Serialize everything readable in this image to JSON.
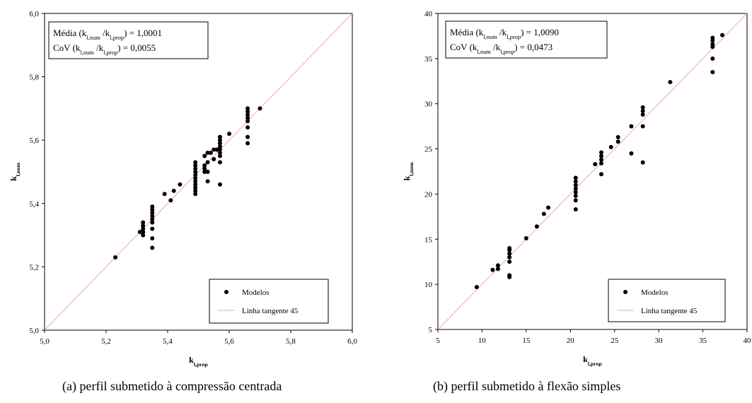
{
  "chart_data": [
    {
      "type": "scatter",
      "xlim": [
        5.0,
        6.0
      ],
      "ylim": [
        5.0,
        6.0
      ],
      "xticks": [
        "5,0",
        "5,2",
        "5,4",
        "5,6",
        "5,8",
        "6,0"
      ],
      "yticks": [
        "5,0",
        "5,2",
        "5,4",
        "5,6",
        "5,8",
        "6,0"
      ],
      "xticks_v": [
        5.0,
        5.2,
        5.4,
        5.6,
        5.8,
        6.0
      ],
      "yticks_v": [
        5.0,
        5.2,
        5.4,
        5.6,
        5.8,
        6.0
      ],
      "xlabel_main": "k",
      "xlabel_sub": "l,prop",
      "ylabel_main": "k",
      "ylabel_sub": "l,num",
      "stat1": {
        "a": "Média (k",
        "s1": "l,num",
        "b": " /k",
        "s2": "l,prop",
        "c": ") = 1,0001"
      },
      "stat2": {
        "a": "CoV (k",
        "s1": "l,num",
        "b": " /k",
        "s2": "l,prop",
        "c": ") = 0,0055"
      },
      "legend": {
        "points": "Modelos",
        "line": "Linha  tangente  45"
      },
      "grid": false,
      "legend_position": "bottom-right",
      "reference_line": [
        [
          5.0,
          5.0
        ],
        [
          6.0,
          6.0
        ]
      ],
      "points": [
        [
          5.23,
          5.23
        ],
        [
          5.31,
          5.31
        ],
        [
          5.32,
          5.3
        ],
        [
          5.32,
          5.31
        ],
        [
          5.32,
          5.32
        ],
        [
          5.32,
          5.33
        ],
        [
          5.32,
          5.34
        ],
        [
          5.35,
          5.26
        ],
        [
          5.35,
          5.29
        ],
        [
          5.35,
          5.32
        ],
        [
          5.35,
          5.34
        ],
        [
          5.35,
          5.35
        ],
        [
          5.35,
          5.36
        ],
        [
          5.35,
          5.37
        ],
        [
          5.35,
          5.38
        ],
        [
          5.35,
          5.39
        ],
        [
          5.39,
          5.43
        ],
        [
          5.41,
          5.41
        ],
        [
          5.42,
          5.44
        ],
        [
          5.44,
          5.46
        ],
        [
          5.49,
          5.43
        ],
        [
          5.49,
          5.44
        ],
        [
          5.49,
          5.45
        ],
        [
          5.49,
          5.46
        ],
        [
          5.49,
          5.47
        ],
        [
          5.49,
          5.48
        ],
        [
          5.49,
          5.49
        ],
        [
          5.49,
          5.5
        ],
        [
          5.49,
          5.51
        ],
        [
          5.49,
          5.52
        ],
        [
          5.49,
          5.53
        ],
        [
          5.52,
          5.5
        ],
        [
          5.52,
          5.51
        ],
        [
          5.52,
          5.52
        ],
        [
          5.52,
          5.55
        ],
        [
          5.53,
          5.47
        ],
        [
          5.53,
          5.5
        ],
        [
          5.53,
          5.53
        ],
        [
          5.53,
          5.56
        ],
        [
          5.54,
          5.56
        ],
        [
          5.55,
          5.57
        ],
        [
          5.55,
          5.54
        ],
        [
          5.56,
          5.57
        ],
        [
          5.57,
          5.58
        ],
        [
          5.57,
          5.46
        ],
        [
          5.57,
          5.53
        ],
        [
          5.57,
          5.55
        ],
        [
          5.57,
          5.56
        ],
        [
          5.57,
          5.57
        ],
        [
          5.57,
          5.59
        ],
        [
          5.57,
          5.6
        ],
        [
          5.57,
          5.61
        ],
        [
          5.6,
          5.62
        ],
        [
          5.66,
          5.59
        ],
        [
          5.66,
          5.61
        ],
        [
          5.66,
          5.64
        ],
        [
          5.66,
          5.66
        ],
        [
          5.66,
          5.67
        ],
        [
          5.66,
          5.68
        ],
        [
          5.66,
          5.69
        ],
        [
          5.66,
          5.7
        ],
        [
          5.7,
          5.7
        ]
      ]
    },
    {
      "type": "scatter",
      "xlim": [
        5,
        40
      ],
      "ylim": [
        5,
        40
      ],
      "xticks": [
        "5",
        "10",
        "15",
        "20",
        "25",
        "30",
        "35",
        "40"
      ],
      "yticks": [
        "5",
        "10",
        "15",
        "20",
        "25",
        "30",
        "35",
        "40"
      ],
      "xticks_v": [
        5,
        10,
        15,
        20,
        25,
        30,
        35,
        40
      ],
      "yticks_v": [
        5,
        10,
        15,
        20,
        25,
        30,
        35,
        40
      ],
      "xlabel_main": "k",
      "xlabel_sub": "l,prop",
      "ylabel_main": "k",
      "ylabel_sub": "l,num",
      "stat1": {
        "a": "Média (k",
        "s1": "l,num",
        "b": " /k",
        "s2": "l,prop",
        "c": ") = 1,0090"
      },
      "stat2": {
        "a": "CoV (k",
        "s1": "l,num",
        "b": " /k",
        "s2": "l,prop",
        "c": ") = 0,0473"
      },
      "legend": {
        "points": "Modelos",
        "line": "Linha tangente 45"
      },
      "grid": false,
      "legend_position": "bottom-right",
      "reference_line": [
        [
          5,
          5
        ],
        [
          40,
          40
        ]
      ],
      "points": [
        [
          9.4,
          9.7
        ],
        [
          11.2,
          11.6
        ],
        [
          11.8,
          11.7
        ],
        [
          11.8,
          12.1
        ],
        [
          13.1,
          10.8
        ],
        [
          13.1,
          11.0
        ],
        [
          13.1,
          12.5
        ],
        [
          13.1,
          13.0
        ],
        [
          13.1,
          13.4
        ],
        [
          13.1,
          13.8
        ],
        [
          13.1,
          14.0
        ],
        [
          15.0,
          15.1
        ],
        [
          16.2,
          16.4
        ],
        [
          17.0,
          17.8
        ],
        [
          17.5,
          18.5
        ],
        [
          20.6,
          18.3
        ],
        [
          20.6,
          19.3
        ],
        [
          20.6,
          19.8
        ],
        [
          20.6,
          20.2
        ],
        [
          20.6,
          20.6
        ],
        [
          20.6,
          21.0
        ],
        [
          20.6,
          21.4
        ],
        [
          20.6,
          21.8
        ],
        [
          22.8,
          23.3
        ],
        [
          23.5,
          22.2
        ],
        [
          23.5,
          23.4
        ],
        [
          23.5,
          23.8
        ],
        [
          23.5,
          24.2
        ],
        [
          23.5,
          24.6
        ],
        [
          24.6,
          25.2
        ],
        [
          25.4,
          25.8
        ],
        [
          25.4,
          26.3
        ],
        [
          26.9,
          24.5
        ],
        [
          26.9,
          27.5
        ],
        [
          28.2,
          23.5
        ],
        [
          28.2,
          27.5
        ],
        [
          28.2,
          28.8
        ],
        [
          28.2,
          29.2
        ],
        [
          28.2,
          29.6
        ],
        [
          31.3,
          32.4
        ],
        [
          36.1,
          33.5
        ],
        [
          36.1,
          35.0
        ],
        [
          36.1,
          36.3
        ],
        [
          36.1,
          36.6
        ],
        [
          36.1,
          37.0
        ],
        [
          36.1,
          37.3
        ],
        [
          37.2,
          37.6
        ]
      ]
    }
  ],
  "captions": {
    "a": "(a) perfil submetido à compressão centrada",
    "b": "(b) perfil submetido à flexão simples"
  }
}
